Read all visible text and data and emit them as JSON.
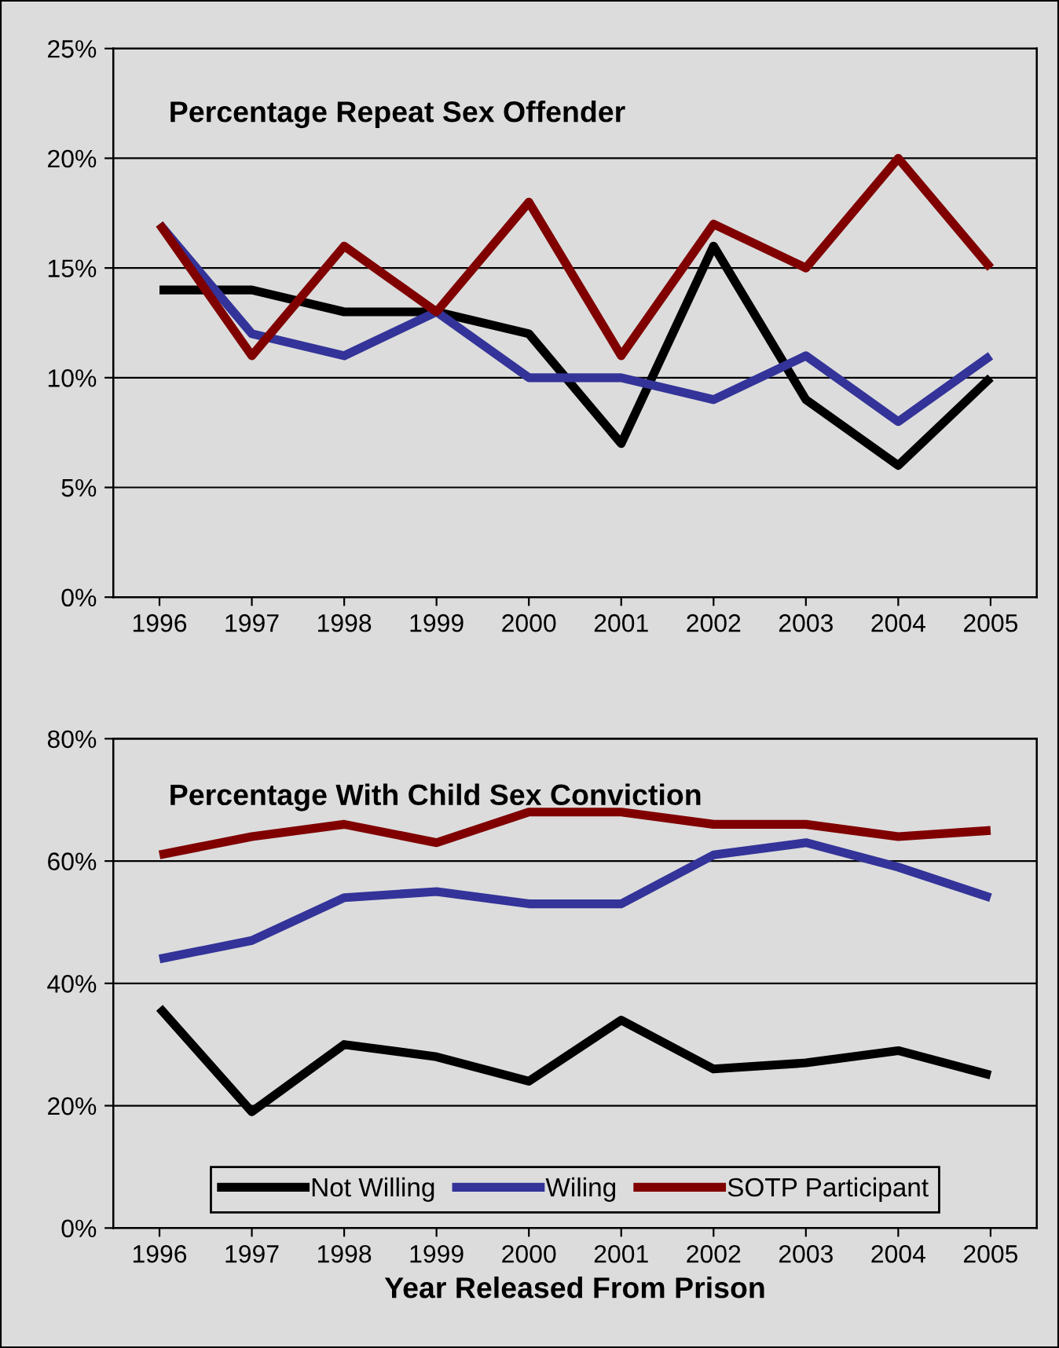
{
  "chart_data": [
    {
      "type": "line",
      "title": "Percentage Repeat Sex Offender",
      "categories": [
        "1996",
        "1997",
        "1998",
        "1999",
        "2000",
        "2001",
        "2002",
        "2003",
        "2004",
        "2005"
      ],
      "series": [
        {
          "color": "#000000",
          "values": [
            14,
            14,
            13,
            13,
            12,
            7,
            16,
            9,
            6,
            10
          ]
        },
        {
          "color": "#333399",
          "values": [
            17,
            12,
            11,
            13,
            10,
            10,
            9,
            11,
            8,
            11
          ]
        },
        {
          "color": "#800000",
          "values": [
            17,
            11,
            16,
            13,
            18,
            11,
            17,
            15,
            20,
            15
          ]
        }
      ],
      "ylim": [
        0,
        25
      ],
      "yticks": [
        {
          "value": 0,
          "label": "0%"
        },
        {
          "value": 5,
          "label": "5%"
        },
        {
          "value": 10,
          "label": "10%"
        },
        {
          "value": 15,
          "label": "15%"
        },
        {
          "value": 20,
          "label": "20%"
        },
        {
          "value": 25,
          "label": "25%"
        }
      ],
      "grid": "y",
      "legend": false,
      "marker": "none",
      "line_style": "solid"
    },
    {
      "type": "line",
      "title": "Percentage With Child Sex Conviction",
      "xlabel": "Year Released From Prison",
      "categories": [
        "1996",
        "1997",
        "1998",
        "1999",
        "2000",
        "2001",
        "2002",
        "2003",
        "2004",
        "2005"
      ],
      "series": [
        {
          "name": "Not Willing",
          "color": "#000000",
          "values": [
            36,
            19,
            30,
            28,
            24,
            34,
            26,
            27,
            29,
            25
          ]
        },
        {
          "name": "Wiling",
          "color": "#333399",
          "values": [
            44,
            47,
            54,
            55,
            53,
            53,
            61,
            63,
            59,
            54
          ]
        },
        {
          "name": "SOTP Participant",
          "color": "#800000",
          "values": [
            61,
            64,
            66,
            63,
            68,
            68,
            66,
            66,
            64,
            65
          ]
        }
      ],
      "ylim": [
        0,
        80
      ],
      "yticks": [
        {
          "value": 0,
          "label": "0%"
        },
        {
          "value": 20,
          "label": "20%"
        },
        {
          "value": 40,
          "label": "40%"
        },
        {
          "value": 60,
          "label": "60%"
        },
        {
          "value": 80,
          "label": "80%"
        }
      ],
      "grid": "y",
      "legend": "bottom",
      "marker": "none",
      "line_style": "solid"
    }
  ]
}
